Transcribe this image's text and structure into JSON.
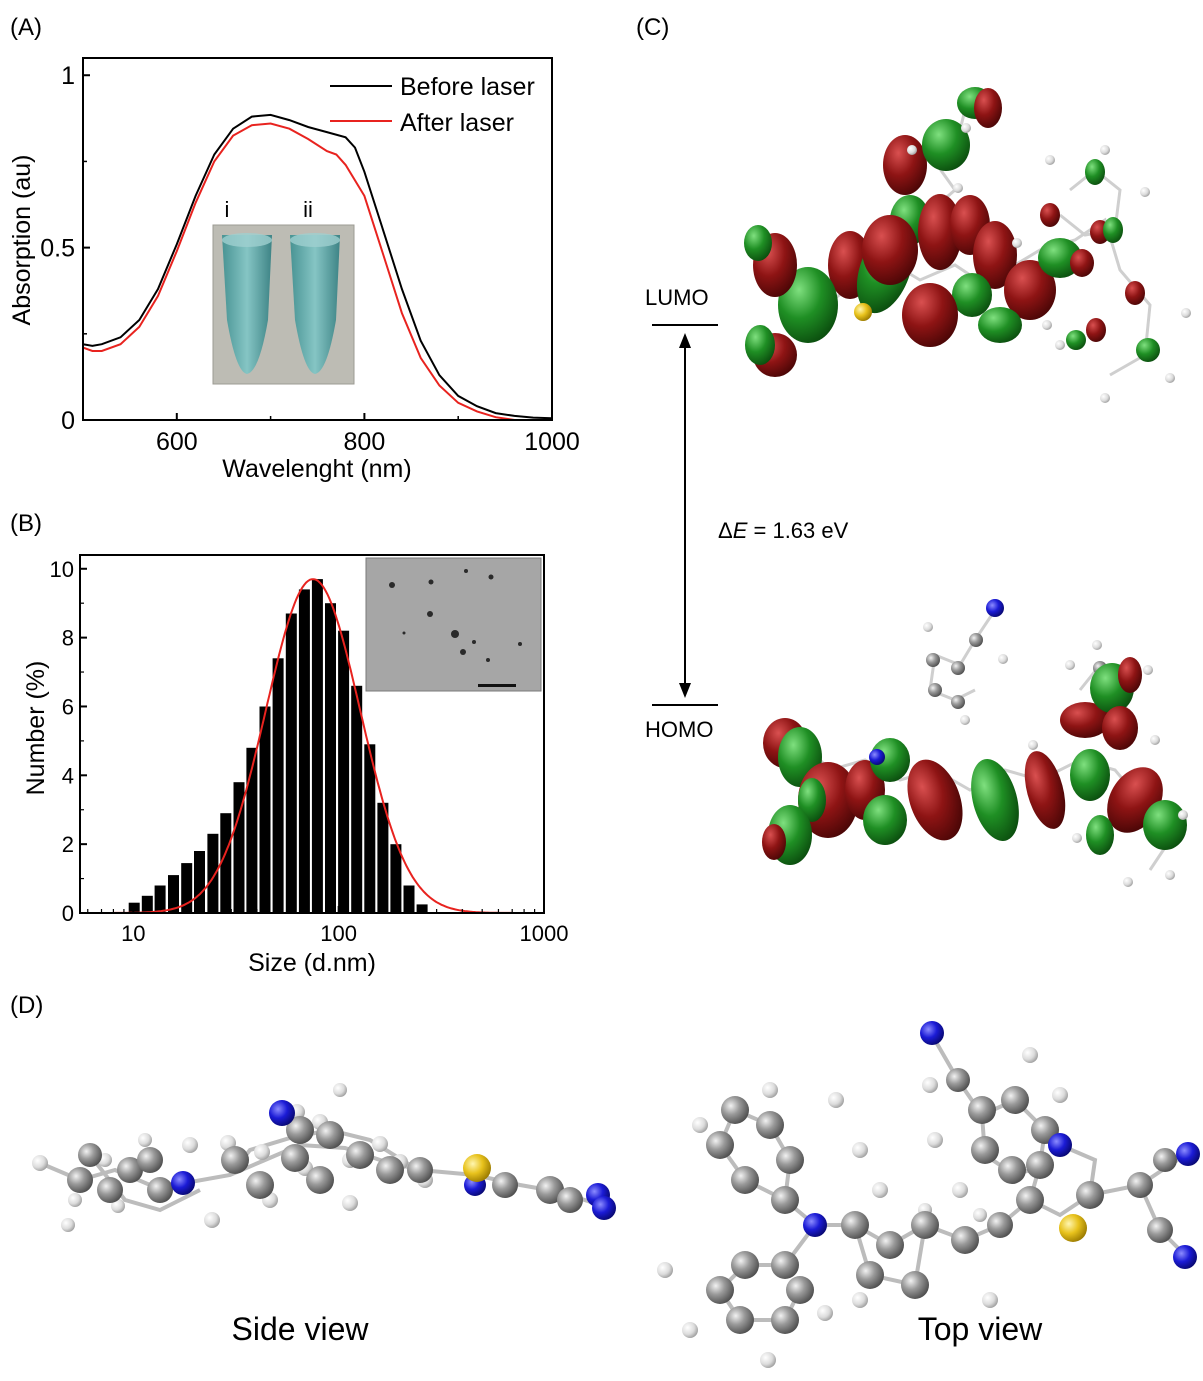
{
  "panels": {
    "a": "(A)",
    "b": "(B)",
    "c": "(C)",
    "d": "(D)"
  },
  "chart_data": [
    {
      "type": "line",
      "panel": "(A)",
      "xlabel": "Wavelenght (nm)",
      "ylabel": "Absorption (au)",
      "xlim": [
        500,
        1000
      ],
      "ylim": [
        0,
        1.05
      ],
      "xticks": [
        600,
        800,
        1000
      ],
      "yticks": [
        0,
        0.5,
        1
      ],
      "ytick_labels": [
        "0",
        "0.5",
        "1"
      ],
      "legend_position": "top-right",
      "inset_labels": [
        "i",
        "ii"
      ],
      "series": [
        {
          "name": "Before laser",
          "color": "#000000",
          "points": [
            [
              500,
              0.22
            ],
            [
              510,
              0.215
            ],
            [
              520,
              0.22
            ],
            [
              540,
              0.24
            ],
            [
              560,
              0.29
            ],
            [
              580,
              0.38
            ],
            [
              600,
              0.51
            ],
            [
              620,
              0.65
            ],
            [
              640,
              0.77
            ],
            [
              660,
              0.845
            ],
            [
              680,
              0.88
            ],
            [
              700,
              0.885
            ],
            [
              720,
              0.87
            ],
            [
              740,
              0.85
            ],
            [
              760,
              0.835
            ],
            [
              780,
              0.82
            ],
            [
              790,
              0.79
            ],
            [
              800,
              0.72
            ],
            [
              820,
              0.55
            ],
            [
              840,
              0.38
            ],
            [
              860,
              0.23
            ],
            [
              880,
              0.13
            ],
            [
              900,
              0.07
            ],
            [
              920,
              0.04
            ],
            [
              940,
              0.02
            ],
            [
              960,
              0.012
            ],
            [
              980,
              0.007
            ],
            [
              1000,
              0.005
            ]
          ]
        },
        {
          "name": "After laser",
          "color": "#e8231f",
          "points": [
            [
              500,
              0.21
            ],
            [
              510,
              0.2
            ],
            [
              520,
              0.2
            ],
            [
              540,
              0.22
            ],
            [
              560,
              0.27
            ],
            [
              580,
              0.36
            ],
            [
              600,
              0.49
            ],
            [
              620,
              0.63
            ],
            [
              640,
              0.75
            ],
            [
              660,
              0.825
            ],
            [
              680,
              0.855
            ],
            [
              700,
              0.86
            ],
            [
              720,
              0.845
            ],
            [
              740,
              0.815
            ],
            [
              760,
              0.78
            ],
            [
              770,
              0.77
            ],
            [
              780,
              0.74
            ],
            [
              800,
              0.65
            ],
            [
              820,
              0.48
            ],
            [
              840,
              0.31
            ],
            [
              860,
              0.18
            ],
            [
              880,
              0.1
            ],
            [
              900,
              0.05
            ],
            [
              920,
              0.025
            ],
            [
              940,
              0.008
            ],
            [
              960,
              0.0
            ],
            [
              980,
              0.0
            ],
            [
              1000,
              0.0
            ]
          ]
        }
      ]
    },
    {
      "type": "bar",
      "panel": "(B)",
      "xlabel": "Size (d.nm)",
      "ylabel": "Number (%)",
      "xscale": "log",
      "xlim": [
        5.5,
        1000
      ],
      "ylim": [
        0,
        10.4
      ],
      "xticks": [
        10,
        100,
        1000
      ],
      "yticks": [
        0,
        2,
        4,
        6,
        8,
        10
      ],
      "bar_color": "#000000",
      "fit_color": "#e8231f",
      "bars": {
        "x": [
          10.1,
          11.7,
          13.5,
          15.7,
          18.2,
          21.0,
          24.4,
          28.2,
          32.7,
          37.8,
          43.8,
          50.7,
          58.8,
          68.1,
          78.8,
          91.3,
          105.7,
          122.4,
          141.8,
          164.2,
          190.1,
          220.2,
          255.0
        ],
        "values": [
          0.3,
          0.5,
          0.8,
          1.1,
          1.45,
          1.8,
          2.3,
          2.9,
          3.8,
          4.8,
          6.0,
          7.4,
          8.7,
          9.4,
          9.7,
          9.0,
          8.2,
          6.6,
          4.9,
          3.2,
          2.0,
          0.8,
          0.25
        ]
      },
      "fit": {
        "type": "lognormal",
        "peak_x": 75,
        "peak_y": 9.7,
        "sigma_log10": 0.23
      }
    }
  ],
  "panel_c": {
    "lumo": "LUMO",
    "homo": "HOMO",
    "gap_prefix": "Δ",
    "gap_symbol": "E",
    "gap_value": " = 1.63 eV"
  },
  "panel_d": {
    "side_view": "Side view",
    "top_view": "Top view"
  },
  "colors": {
    "orbital_red": "#8b1a1a",
    "orbital_green": "#1e8f2a",
    "atom_carbon": "#8a8a8a",
    "atom_hydrogen": "#e6e6e6",
    "atom_nitrogen": "#1a1ad9",
    "atom_sulfur": "#e6c21a"
  }
}
